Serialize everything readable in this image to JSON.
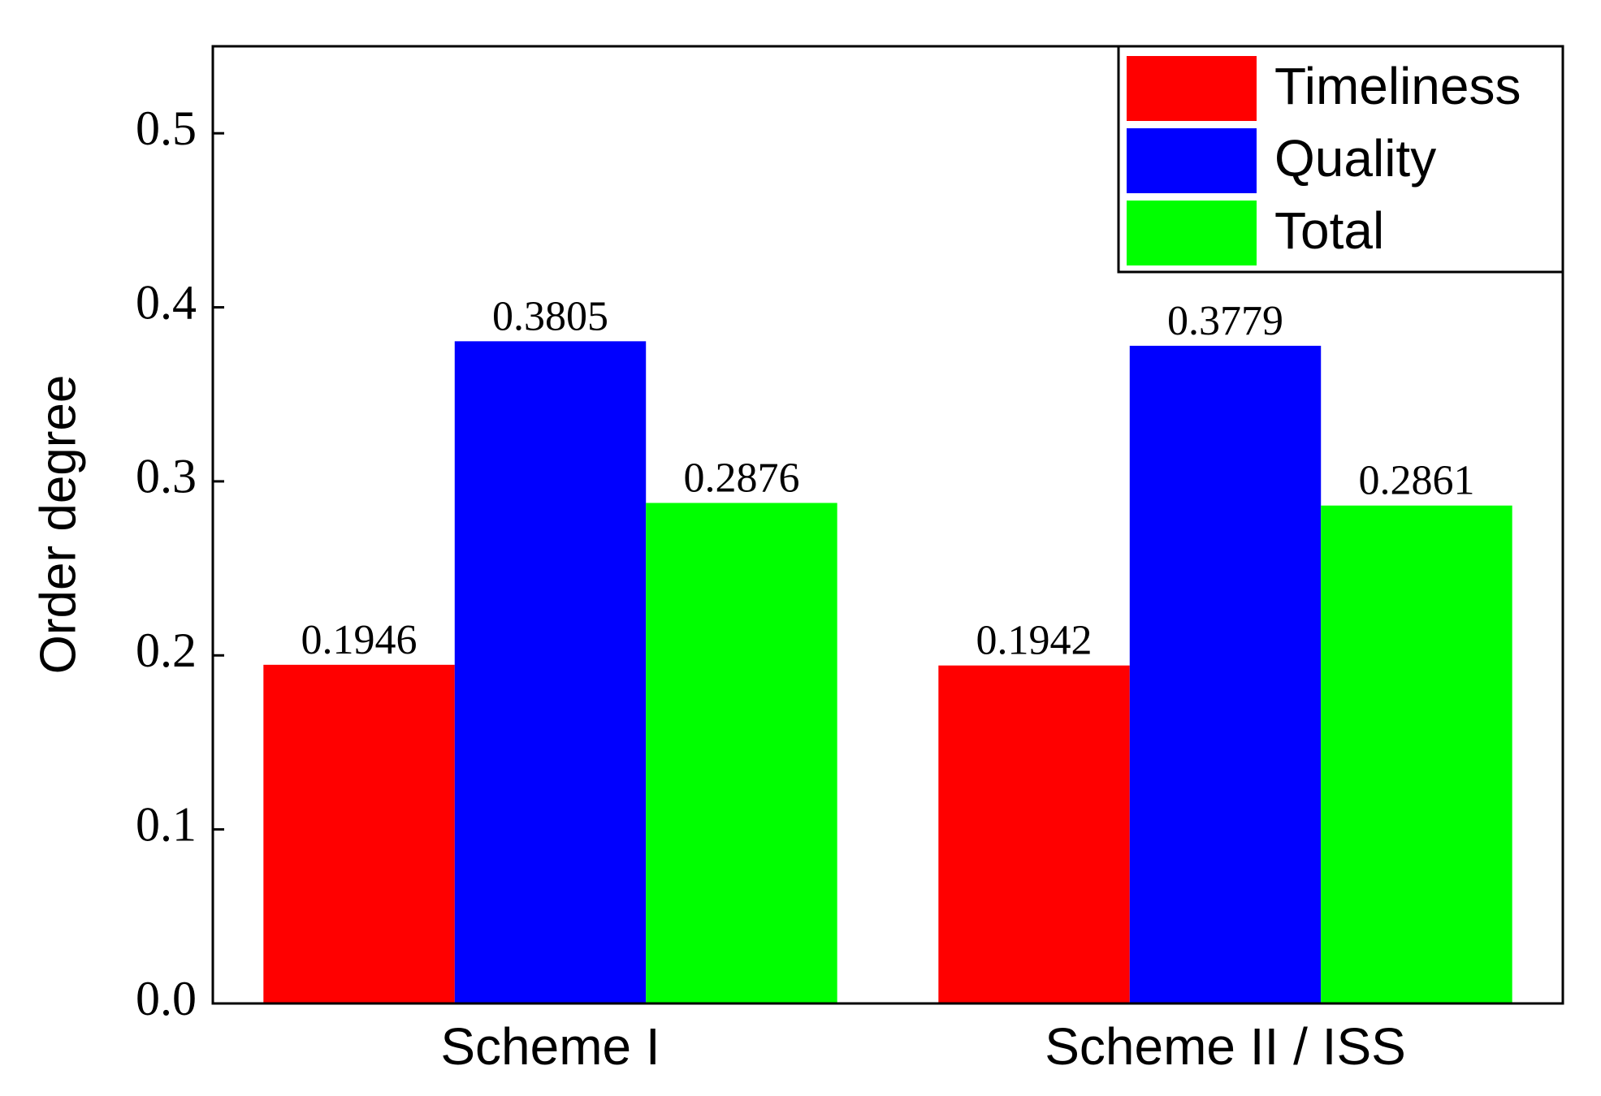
{
  "chart_data": {
    "type": "bar",
    "y_label": "Order degree",
    "categories": [
      "Scheme I",
      "Scheme  II / ISS"
    ],
    "series": [
      {
        "name": "Timeliness",
        "color": "#ff0000",
        "values": [
          0.1946,
          0.1942
        ]
      },
      {
        "name": "Quality",
        "color": "#0000ff",
        "values": [
          0.3805,
          0.3779
        ]
      },
      {
        "name": "Total",
        "color": "#00ff00",
        "values": [
          0.2876,
          0.2861
        ]
      }
    ],
    "ylim": [
      0,
      0.55
    ],
    "yticks": [
      {
        "value": 0,
        "label": "0.0"
      },
      0.1,
      0.2,
      0.3,
      0.4,
      0.5
    ],
    "legend": "upper right"
  }
}
